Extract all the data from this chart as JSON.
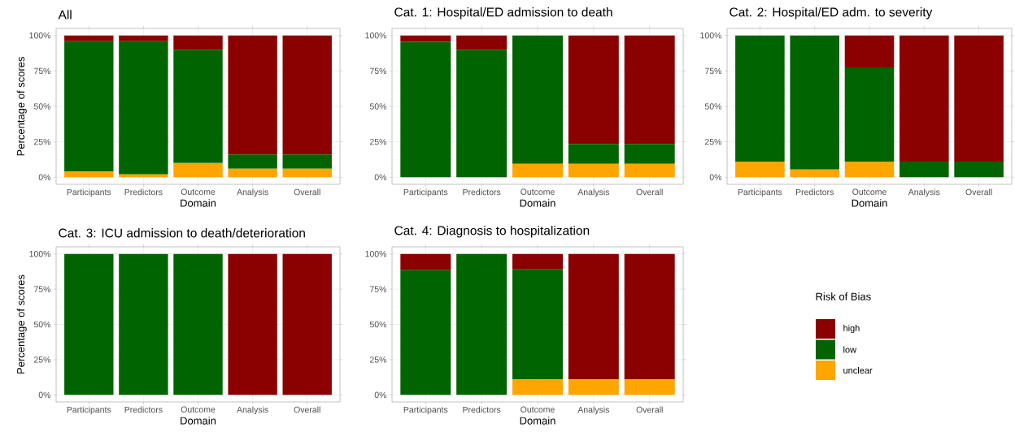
{
  "chart_data": [
    {
      "type": "bar",
      "stacked": true,
      "title": "All",
      "xlabel": "Domain",
      "ylabel": "Percentage of scores",
      "grid": true,
      "categories": [
        "Participants",
        "Predictors",
        "Outcome",
        "Analysis",
        "Overall"
      ],
      "ylim": [
        -5,
        105
      ],
      "yticks": [
        {
          "value": 0,
          "label": "0%"
        },
        {
          "value": 25,
          "label": "25%"
        },
        {
          "value": 50,
          "label": "50%"
        },
        {
          "value": 75,
          "label": "75%"
        },
        {
          "value": 100,
          "label": "100%"
        }
      ],
      "series": [
        {
          "color": "#ffa500",
          "values": [
            4,
            2,
            10,
            6,
            6
          ]
        },
        {
          "color": "#006400",
          "values": [
            92,
            94,
            80,
            10,
            10
          ]
        },
        {
          "color": "#8b0000",
          "values": [
            4,
            4,
            10,
            84,
            84
          ]
        }
      ]
    },
    {
      "type": "bar",
      "stacked": true,
      "title": "Cat. 1: Hospital/ED admission to death",
      "xlabel": "Domain",
      "grid": true,
      "categories": [
        "Participants",
        "Predictors",
        "Outcome",
        "Analysis",
        "Overall"
      ],
      "ylim": [
        -5,
        105
      ],
      "yticks": [
        {
          "value": 0,
          "label": "0%"
        },
        {
          "value": 25,
          "label": "25%"
        },
        {
          "value": 50,
          "label": "50%"
        },
        {
          "value": 75,
          "label": "75%"
        },
        {
          "value": 100,
          "label": "100%"
        }
      ],
      "series": [
        {
          "color": "#ffa500",
          "values": [
            0,
            0,
            9.5,
            9.5,
            9.5
          ]
        },
        {
          "color": "#006400",
          "values": [
            95.5,
            90,
            90.5,
            14,
            14
          ]
        },
        {
          "color": "#8b0000",
          "values": [
            4.5,
            10,
            0,
            76.5,
            76.5
          ]
        }
      ]
    },
    {
      "type": "bar",
      "stacked": true,
      "title": "Cat. 2: Hospital/ED adm. to  severity",
      "xlabel": "Domain",
      "grid": true,
      "categories": [
        "Participants",
        "Predictors",
        "Outcome",
        "Analysis",
        "Overall"
      ],
      "ylim": [
        -5,
        105
      ],
      "yticks": [
        {
          "value": 0,
          "label": "0%"
        },
        {
          "value": 25,
          "label": "25%"
        },
        {
          "value": 50,
          "label": "50%"
        },
        {
          "value": 75,
          "label": "75%"
        },
        {
          "value": 100,
          "label": "100%"
        }
      ],
      "series": [
        {
          "color": "#ffa500",
          "values": [
            11,
            5.5,
            11,
            0,
            0
          ]
        },
        {
          "color": "#006400",
          "values": [
            89,
            94.5,
            66.5,
            11,
            11
          ]
        },
        {
          "color": "#8b0000",
          "values": [
            0,
            0,
            22.5,
            89,
            89
          ]
        }
      ]
    },
    {
      "type": "bar",
      "stacked": true,
      "title": "Cat. 3: ICU admission to death/deterioration",
      "xlabel": "Domain",
      "ylabel": "Percentage of scores",
      "grid": true,
      "categories": [
        "Participants",
        "Predictors",
        "Outcome",
        "Analysis",
        "Overall"
      ],
      "ylim": [
        -5,
        105
      ],
      "yticks": [
        {
          "value": 0,
          "label": "0%"
        },
        {
          "value": 25,
          "label": "25%"
        },
        {
          "value": 50,
          "label": "50%"
        },
        {
          "value": 75,
          "label": "75%"
        },
        {
          "value": 100,
          "label": "100%"
        }
      ],
      "series": [
        {
          "color": "#ffa500",
          "values": [
            0,
            0,
            0,
            0,
            0
          ]
        },
        {
          "color": "#006400",
          "values": [
            100,
            100,
            100,
            0,
            0
          ]
        },
        {
          "color": "#8b0000",
          "values": [
            0,
            0,
            0,
            100,
            100
          ]
        }
      ]
    },
    {
      "type": "bar",
      "stacked": true,
      "title": "Cat. 4: Diagnosis to hospitalization",
      "xlabel": "Domain",
      "grid": true,
      "legend": "right",
      "legend_title": "Risk of Bias",
      "categories": [
        "Participants",
        "Predictors",
        "Outcome",
        "Analysis",
        "Overall"
      ],
      "ylim": [
        -5,
        105
      ],
      "yticks": [
        {
          "value": 0,
          "label": "0%"
        },
        {
          "value": 25,
          "label": "25%"
        },
        {
          "value": 50,
          "label": "50%"
        },
        {
          "value": 75,
          "label": "75%"
        },
        {
          "value": 100,
          "label": "100%"
        }
      ],
      "series": [
        {
          "name": "unclear",
          "color": "#ffa500",
          "values": [
            0,
            0,
            11,
            11,
            11
          ]
        },
        {
          "name": "low",
          "color": "#006400",
          "values": [
            88.5,
            100,
            78,
            0,
            0
          ]
        },
        {
          "name": "high",
          "color": "#8b0000",
          "values": [
            11.5,
            0,
            11,
            89,
            89
          ]
        }
      ]
    }
  ]
}
